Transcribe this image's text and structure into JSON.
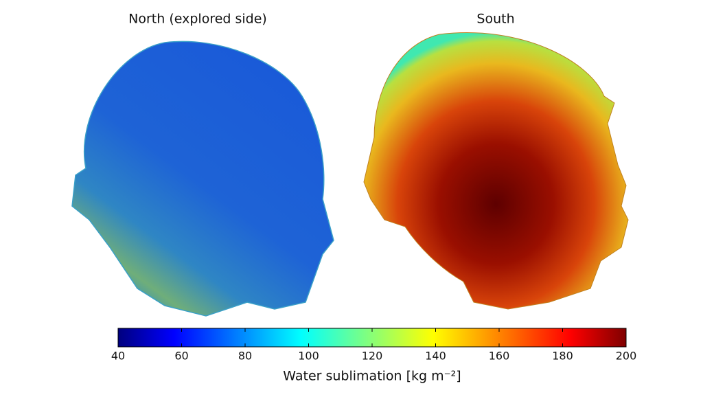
{
  "panels": [
    {
      "title": "North (explored side)"
    },
    {
      "title": "South"
    }
  ],
  "colorbar": {
    "label": "Water sublimation [kg m⁻²]",
    "lim": [
      40,
      200
    ],
    "ticks": [
      40,
      60,
      80,
      100,
      120,
      140,
      160,
      180,
      200
    ]
  }
}
